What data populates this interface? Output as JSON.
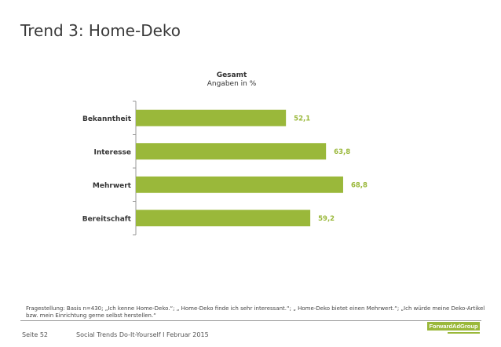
{
  "title": "Trend 3: Home-Deko",
  "chart_data": {
    "type": "bar",
    "orientation": "horizontal",
    "title": "Gesamt",
    "subtitle": "Angaben in %",
    "categories": [
      "Bekanntheit",
      "Interesse",
      "Mehrwert",
      "Bereitschaft"
    ],
    "values": [
      52.1,
      63.8,
      68.8,
      59.2
    ],
    "value_labels": [
      "52,1",
      "63,8",
      "68,8",
      "59,2"
    ],
    "xlim": [
      0,
      75
    ],
    "bar_color": "#9ab83a",
    "label_color": "#9ab83a",
    "grid": false,
    "legend": "none"
  },
  "footnote": "Fragestellung: Basis n=430; „Ich kenne Home-Deko.“; „ Home-Deko finde ich sehr interessant.“; „ Home-Deko bietet einen Mehrwert.“; „Ich würde meine Deko-Artikel bzw. mein Einrichtung gerne selbst herstellen.“",
  "footer": {
    "page": "Seite 52",
    "text": "Social Trends Do-It-Yourself I Februar 2015",
    "logo": "ForwardAdGroup"
  }
}
